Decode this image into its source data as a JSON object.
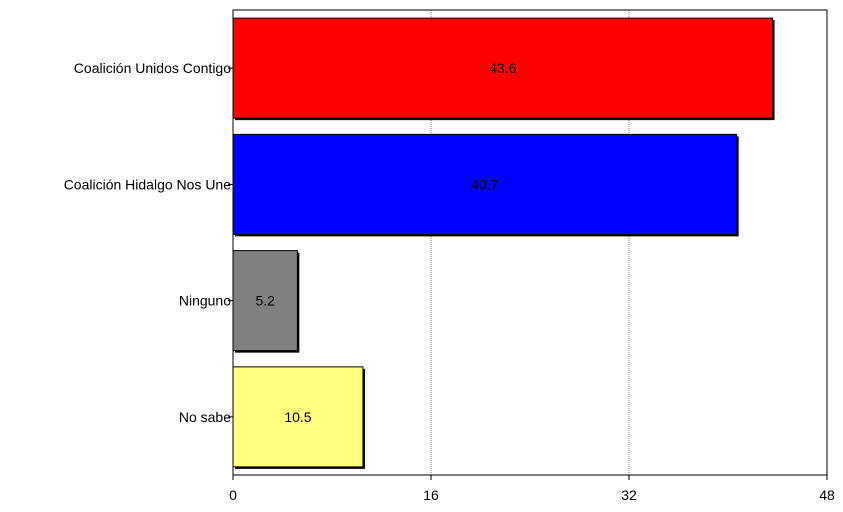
{
  "chart_data": {
    "type": "bar",
    "orientation": "horizontal",
    "title": "",
    "xlabel": "",
    "ylabel": "",
    "categories": [
      "Coalición Unidos Contigo",
      "Coalición Hidalgo Nos Une",
      "Ninguno",
      "No sabe"
    ],
    "values": [
      43.6,
      40.7,
      5.2,
      10.5
    ],
    "value_labels": [
      "43.6",
      "40.7",
      "5.2",
      "10.5"
    ],
    "colors": [
      "#ff0000",
      "#0000ff",
      "#808080",
      "#ffff80"
    ],
    "xlim": [
      0,
      48
    ],
    "xticks": [
      0,
      16,
      32,
      48
    ],
    "xtick_labels": [
      "0",
      "16",
      "32",
      "48"
    ],
    "grid": true,
    "legend": "none"
  }
}
